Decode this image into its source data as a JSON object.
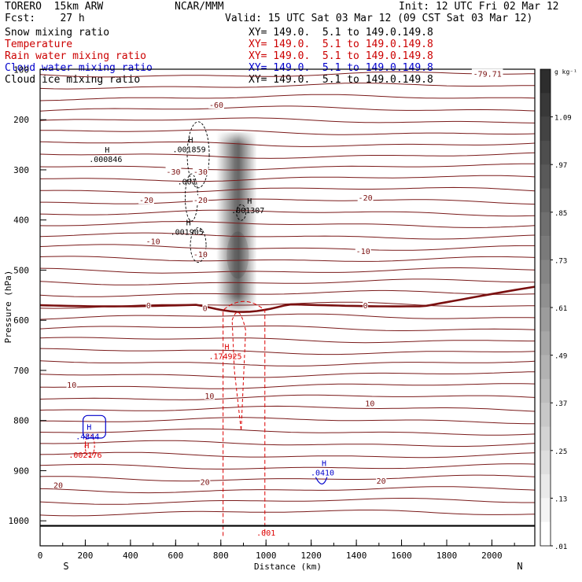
{
  "header": {
    "model": "TORERO  15km ARW",
    "center": "NCAR/MMM",
    "init": "Init: 12 UTC Fri 02 Mar 12",
    "fcst": "Fcst:    27 h",
    "valid": "Valid: 15 UTC Sat 03 Mar 12 (09 CST Sat 03 Mar 12)"
  },
  "fields": [
    {
      "name": "Snow mixing ratio",
      "xy": "XY= 149.0.  5.1 to 149.0.149.8",
      "color": "#000000",
      "xy_color": "#000000"
    },
    {
      "name": "Temperature",
      "xy": "XY= 149.0.  5.1 to 149.0.149.8",
      "color": "#cc0000",
      "xy_color": "#cc0000"
    },
    {
      "name": "Rain water mixing ratio",
      "xy": "XY= 149.0.  5.1 to 149.0.149.8",
      "color": "#cc0000",
      "xy_color": "#cc0000"
    },
    {
      "name": "Cloud water mixing ratio",
      "xy": "XY= 149.0.  5.1 to 149.0.149.8",
      "color": "#0000cc",
      "xy_color": "#0000cc"
    },
    {
      "name": "Cloud ice mixing ratio",
      "xy": "XY= 149.0.  5.1 to 149.0.149.8",
      "color": "#000000",
      "xy_color": "#000000"
    }
  ],
  "chart_data": {
    "type": "contour cross-section",
    "xlabel": "Distance (km)",
    "ylabel": "Pressure (hPa)",
    "x_ticks": [
      0,
      200,
      400,
      600,
      800,
      1000,
      1200,
      1400,
      1600,
      1800,
      2000
    ],
    "xlim": [
      0,
      2190
    ],
    "y_ticks": [
      100,
      200,
      300,
      400,
      500,
      600,
      700,
      800,
      900,
      1000
    ],
    "ylim": [
      100,
      1050
    ],
    "end_labels": {
      "left": "S",
      "right": "N"
    },
    "colorbar": {
      "unit": "g kg⁻¹",
      "labels": [
        "1.09",
        ".97",
        ".85",
        ".73",
        ".61",
        ".49",
        ".37",
        ".25",
        ".13",
        ".01"
      ]
    },
    "temperature_labels": [
      {
        "text": "-79.71",
        "x": 1980,
        "p": 108
      },
      {
        "text": "-60",
        "x": 780,
        "p": 170
      },
      {
        "text": "-30",
        "x": 590,
        "p": 303
      },
      {
        "text": "-30",
        "x": 710,
        "p": 303
      },
      {
        "text": "-20",
        "x": 470,
        "p": 360
      },
      {
        "text": "-20",
        "x": 710,
        "p": 360
      },
      {
        "text": "-20",
        "x": 1440,
        "p": 355
      },
      {
        "text": "-10",
        "x": 500,
        "p": 442
      },
      {
        "text": "-10",
        "x": 710,
        "p": 468
      },
      {
        "text": "-10",
        "x": 1430,
        "p": 462
      },
      {
        "text": "0",
        "x": 480,
        "p": 570
      },
      {
        "text": "0",
        "x": 730,
        "p": 575
      },
      {
        "text": "0",
        "x": 1440,
        "p": 570
      },
      {
        "text": "10",
        "x": 140,
        "p": 728
      },
      {
        "text": "10",
        "x": 750,
        "p": 750
      },
      {
        "text": "10",
        "x": 1460,
        "p": 765
      },
      {
        "text": "20",
        "x": 80,
        "p": 928
      },
      {
        "text": "20",
        "x": 730,
        "p": 922
      },
      {
        "text": "20",
        "x": 1510,
        "p": 920
      }
    ],
    "maxima": [
      {
        "field": "Cloud ice mixing ratio",
        "value": ".000846",
        "x": 290,
        "p": 275
      },
      {
        "field": "Cloud ice mixing ratio",
        "value": ".001859",
        "x": 660,
        "p": 255
      },
      {
        "field": "Cloud ice mixing ratio",
        "value": ".001",
        "x": 650,
        "p": 320
      },
      {
        "field": "Cloud ice mixing ratio",
        "value": ".001307",
        "x": 920,
        "p": 377
      },
      {
        "field": "Cloud ice mixing ratio",
        "value": ".001905",
        "x": 650,
        "p": 420
      },
      {
        "field": "Rain water mixing ratio",
        "value": ".174925",
        "x": 820,
        "p": 668
      },
      {
        "field": "Rain water mixing ratio",
        "value": ".002176",
        "x": 200,
        "p": 865
      },
      {
        "field": "Rain water mixing ratio",
        "value": ".001",
        "x": 1000,
        "p": 1020
      },
      {
        "field": "Cloud water mixing ratio",
        "value": ".4844",
        "x": 210,
        "p": 828
      },
      {
        "field": "Cloud water mixing ratio",
        "value": ".0410",
        "x": 1250,
        "p": 900
      }
    ]
  }
}
